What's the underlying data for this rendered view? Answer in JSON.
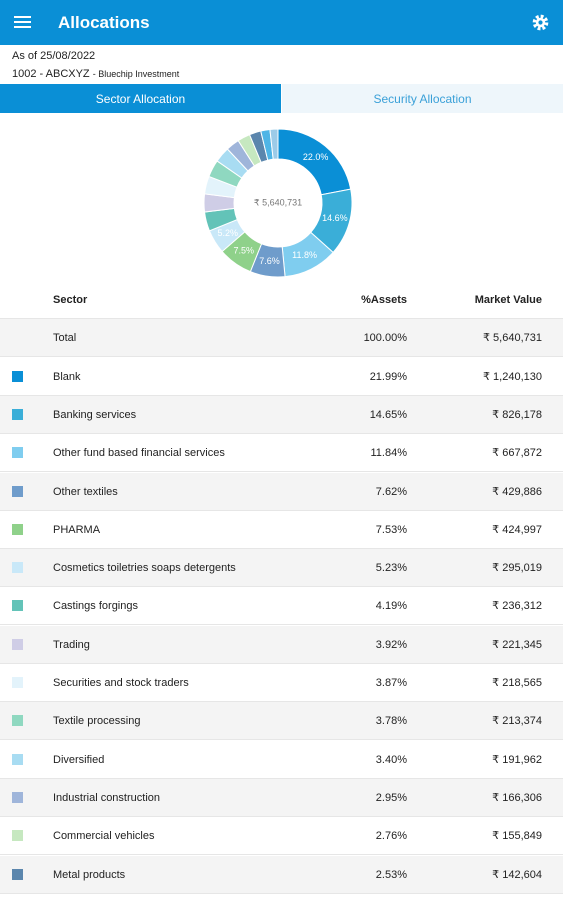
{
  "header": {
    "title": "Allocations"
  },
  "info": {
    "as_of": "As of 25/08/2022",
    "account": "1002 - ABCXYZ",
    "account_name": "- Bluechip Investment"
  },
  "tabs": [
    "Sector Allocation",
    "Security Allocation"
  ],
  "chart_data": {
    "type": "pie",
    "donut": true,
    "center_label": "₹ 5,640,731",
    "categories": [
      "Blank",
      "Banking services",
      "Other fund based financial services",
      "Other textiles",
      "PHARMA",
      "Cosmetics toiletries soaps detergents",
      "Castings forgings",
      "Trading",
      "Securities and stock traders",
      "Textile processing",
      "Diversified",
      "Industrial construction",
      "Commercial vehicles",
      "Metal products",
      null,
      null
    ],
    "values": [
      21.99,
      14.65,
      11.84,
      7.62,
      7.53,
      5.23,
      4.19,
      3.92,
      3.87,
      3.78,
      3.4,
      2.95,
      2.76,
      2.53,
      2.0,
      1.74
    ],
    "value_labels": [
      "22.0%",
      "14.6%",
      "11.8%",
      "7.6%",
      "7.5%",
      "5.2%",
      null,
      null,
      null,
      null,
      null,
      null,
      null,
      null,
      null,
      null
    ],
    "colors": [
      "#0a8fd6",
      "#3aaed8",
      "#7fcdef",
      "#6f9ccb",
      "#8fd18a",
      "#c9e8f8",
      "#63c3b8",
      "#cfcde6",
      "#e3f3fb",
      "#8fd8c0",
      "#a8dcf2",
      "#9fb5da",
      "#c6e8c0",
      "#5b86ad",
      "#4fb5e6",
      "#9ccbe8"
    ]
  },
  "table": {
    "headers": [
      "Sector",
      "%Assets",
      "Market Value"
    ],
    "total": [
      "Total",
      "100.00%",
      "₹ 5,640,731"
    ],
    "rows": [
      [
        "Blank",
        "21.99%",
        "₹ 1,240,130"
      ],
      [
        "Banking services",
        "14.65%",
        "₹ 826,178"
      ],
      [
        "Other fund based financial services",
        "11.84%",
        "₹ 667,872"
      ],
      [
        "Other textiles",
        "7.62%",
        "₹ 429,886"
      ],
      [
        "PHARMA",
        "7.53%",
        "₹ 424,997"
      ],
      [
        "Cosmetics toiletries soaps detergents",
        "5.23%",
        "₹ 295,019"
      ],
      [
        "Castings forgings",
        "4.19%",
        "₹ 236,312"
      ],
      [
        "Trading",
        "3.92%",
        "₹ 221,345"
      ],
      [
        "Securities and stock traders",
        "3.87%",
        "₹ 218,565"
      ],
      [
        "Textile processing",
        "3.78%",
        "₹ 213,374"
      ],
      [
        "Diversified",
        "3.40%",
        "₹ 191,962"
      ],
      [
        "Industrial construction",
        "2.95%",
        "₹ 166,306"
      ],
      [
        "Commercial vehicles",
        "2.76%",
        "₹ 155,849"
      ],
      [
        "Metal products",
        "2.53%",
        "₹ 142,604"
      ]
    ]
  }
}
